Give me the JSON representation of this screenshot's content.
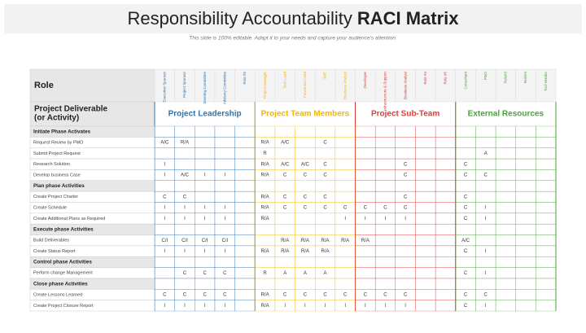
{
  "header": {
    "title": "Responsibility Accountability",
    "title_bold": "RACI Matrix",
    "subtitle": "This slide is 100% editable. Adapt it to your needs and capture your audience's attention."
  },
  "table": {
    "role_label": "Role",
    "activity_label": [
      "Project Deliverable",
      "(or Activity)"
    ],
    "groups": [
      {
        "name": "Project Leadership",
        "color": "#2e74b5",
        "roles": [
          "Executive Sponsor",
          "Project Sponsor",
          "Steering Committee",
          "Advisory Committee",
          "Role #5"
        ]
      },
      {
        "name": "Project Team Members",
        "color": "#f2b705",
        "roles": [
          "Project Manager",
          "Tech Lead",
          "Functional Lead",
          "SME",
          "Business Analyst"
        ]
      },
      {
        "name": "Project Sub-Team",
        "color": "#e03c3c",
        "roles": [
          "Developer",
          "Infrastructure & Support",
          "Business Analyst",
          "Role #4",
          "Role #5"
        ]
      },
      {
        "name": "External Resources",
        "color": "#4aa23a",
        "roles": [
          "Consultant",
          "PMO",
          "Role#3",
          "Role#4",
          "Tool Vendor"
        ]
      }
    ],
    "rows": [
      {
        "section": "Initiate Phase Activates"
      },
      {
        "activity": "Request Review by PMO",
        "cells": [
          "A/C",
          "R/A",
          null,
          null,
          null,
          "R/A",
          "A/C",
          null,
          "C",
          null,
          null,
          null,
          null,
          null,
          null,
          null,
          null,
          null,
          null,
          null
        ]
      },
      {
        "activity": "Submit Project Request",
        "cells": [
          null,
          null,
          null,
          null,
          null,
          "R",
          null,
          null,
          null,
          null,
          null,
          null,
          null,
          null,
          null,
          null,
          "A",
          null,
          null,
          null
        ]
      },
      {
        "activity": "Research Solution",
        "cells": [
          "I",
          null,
          null,
          null,
          null,
          "R/A",
          "A/C",
          "A/C",
          "C",
          null,
          null,
          null,
          "C",
          null,
          null,
          "C",
          null,
          null,
          null,
          null
        ]
      },
      {
        "activity": "Develop business Case",
        "cells": [
          "I",
          "A/C",
          "I",
          "I",
          null,
          "R/A",
          "C",
          "C",
          "C",
          null,
          null,
          null,
          "C",
          null,
          null,
          "C",
          "C",
          null,
          null,
          null
        ]
      },
      {
        "section": "Plan phase Activities"
      },
      {
        "activity": "Create Project Charter",
        "cells": [
          "C",
          "C",
          null,
          null,
          null,
          "R/A",
          "C",
          "C",
          "C",
          null,
          null,
          null,
          "C",
          null,
          null,
          "C",
          null,
          null,
          null,
          null
        ]
      },
      {
        "activity": "Create Schedule",
        "cells": [
          "I",
          "I",
          "I",
          "I",
          null,
          "R/A",
          "C",
          "C",
          "C",
          "C",
          "C",
          "C",
          "C",
          null,
          null,
          "C",
          "I",
          null,
          null,
          null
        ]
      },
      {
        "activity": "Create Additional Plans as Required",
        "cells": [
          "I",
          "I",
          "I",
          "I",
          null,
          "R/A",
          null,
          null,
          null,
          "I",
          "I",
          "I",
          "I",
          null,
          null,
          "C",
          "I",
          null,
          null,
          null
        ]
      },
      {
        "section": "Execute phase Activities"
      },
      {
        "activity": "Build Deliverables",
        "cells": [
          "C/I",
          "C/I",
          "C/I",
          "C/I",
          null,
          null,
          "R/A",
          "R/A",
          "R/A",
          "R/A",
          "R/A",
          null,
          null,
          null,
          null,
          "A/C",
          null,
          null,
          null,
          null
        ]
      },
      {
        "activity": "Create Status Report",
        "cells": [
          "I",
          "I",
          "I",
          "I",
          null,
          "R/A",
          "R/A",
          "R/A",
          "R/A",
          null,
          null,
          null,
          null,
          null,
          null,
          "C",
          "I",
          null,
          null,
          null
        ]
      },
      {
        "section": "Control phase Activities"
      },
      {
        "activity": "Perform change Management",
        "cells": [
          null,
          "C",
          "C",
          "C",
          null,
          "R",
          "A",
          "A",
          "A",
          null,
          null,
          null,
          null,
          null,
          null,
          "C",
          "I",
          null,
          null,
          null
        ]
      },
      {
        "section": "Close phase Activities"
      },
      {
        "activity": "Create Lessons Learned",
        "cells": [
          "C",
          "C",
          "C",
          "C",
          null,
          "R/A",
          "C",
          "C",
          "C",
          "C",
          "C",
          "C",
          "C",
          null,
          null,
          "C",
          "C",
          null,
          null,
          null
        ]
      },
      {
        "activity": "Create Project Closure Report",
        "cells": [
          "I",
          "I",
          "I",
          "I",
          null,
          "R/A",
          "I",
          "I",
          "I",
          "I",
          "I",
          "I",
          "I",
          null,
          null,
          "C",
          "I",
          null,
          null,
          null
        ]
      }
    ]
  }
}
